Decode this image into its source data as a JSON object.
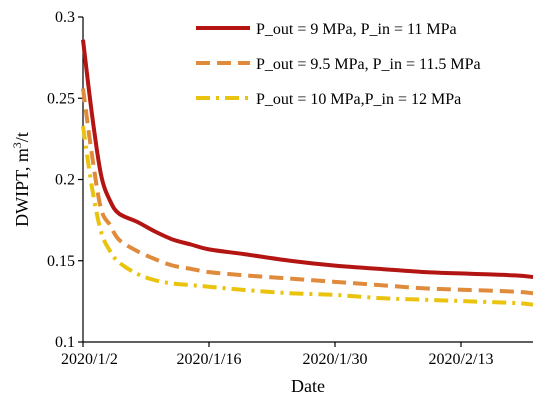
{
  "chart_data": {
    "type": "line",
    "title": "",
    "xlabel": "Date",
    "ylabel": "DWIPT, m³/t",
    "ylabel_main": "DWIPT, m",
    "ylabel_sup": "3",
    "ylabel_tail": "/t",
    "x_type": "date",
    "xlim": [
      "2020-01-02",
      "2020-02-21"
    ],
    "ylim": [
      0.1,
      0.3
    ],
    "x_ticks": [
      {
        "date": "2020-01-02",
        "label": "2020/1/2"
      },
      {
        "date": "2020-01-16",
        "label": "2020/1/16"
      },
      {
        "date": "2020-01-30",
        "label": "2020/1/30"
      },
      {
        "date": "2020-02-13",
        "label": "2020/2/13"
      }
    ],
    "y_ticks": [
      {
        "value": 0.1,
        "label": "0.1"
      },
      {
        "value": 0.15,
        "label": "0.15"
      },
      {
        "value": 0.2,
        "label": "0.2"
      },
      {
        "value": 0.25,
        "label": "0.25"
      },
      {
        "value": 0.3,
        "label": "0.3"
      }
    ],
    "grid": false,
    "legend_position": "top-right",
    "series": [
      {
        "name": "P_out = 9 MPa, P_in = 11 MPa",
        "color": "#b31512",
        "style": "solid",
        "points": [
          [
            "2020-01-02",
            0.286
          ],
          [
            "2020-01-03",
            0.24
          ],
          [
            "2020-01-04",
            0.203
          ],
          [
            "2020-01-05",
            0.187
          ],
          [
            "2020-01-06",
            0.179
          ],
          [
            "2020-01-08",
            0.174
          ],
          [
            "2020-01-10",
            0.168
          ],
          [
            "2020-01-12",
            0.163
          ],
          [
            "2020-01-14",
            0.16
          ],
          [
            "2020-01-16",
            0.157
          ],
          [
            "2020-01-20",
            0.154
          ],
          [
            "2020-01-25",
            0.15
          ],
          [
            "2020-01-30",
            0.147
          ],
          [
            "2020-02-04",
            0.145
          ],
          [
            "2020-02-09",
            0.143
          ],
          [
            "2020-02-14",
            0.142
          ],
          [
            "2020-02-19",
            0.141
          ],
          [
            "2020-02-21",
            0.14
          ]
        ]
      },
      {
        "name": "P_out = 9.5 MPa, P_in = 11.5 MPa",
        "color": "#e08a3c",
        "style": "dashed",
        "points": [
          [
            "2020-01-02",
            0.256
          ],
          [
            "2020-01-03",
            0.215
          ],
          [
            "2020-01-04",
            0.182
          ],
          [
            "2020-01-05",
            0.172
          ],
          [
            "2020-01-06",
            0.163
          ],
          [
            "2020-01-08",
            0.156
          ],
          [
            "2020-01-10",
            0.151
          ],
          [
            "2020-01-12",
            0.147
          ],
          [
            "2020-01-14",
            0.145
          ],
          [
            "2020-01-16",
            0.143
          ],
          [
            "2020-01-20",
            0.141
          ],
          [
            "2020-01-25",
            0.139
          ],
          [
            "2020-01-30",
            0.137
          ],
          [
            "2020-02-04",
            0.135
          ],
          [
            "2020-02-09",
            0.133
          ],
          [
            "2020-02-14",
            0.132
          ],
          [
            "2020-02-19",
            0.131
          ],
          [
            "2020-02-21",
            0.13
          ]
        ]
      },
      {
        "name": "P_out = 10 MPa,P_in = 12 MPa",
        "color": "#e9c30e",
        "style": "dashdot",
        "points": [
          [
            "2020-01-02",
            0.233
          ],
          [
            "2020-01-03",
            0.195
          ],
          [
            "2020-01-04",
            0.168
          ],
          [
            "2020-01-05",
            0.156
          ],
          [
            "2020-01-06",
            0.149
          ],
          [
            "2020-01-08",
            0.142
          ],
          [
            "2020-01-10",
            0.138
          ],
          [
            "2020-01-12",
            0.136
          ],
          [
            "2020-01-14",
            0.135
          ],
          [
            "2020-01-16",
            0.134
          ],
          [
            "2020-01-20",
            0.132
          ],
          [
            "2020-01-25",
            0.13
          ],
          [
            "2020-01-30",
            0.129
          ],
          [
            "2020-02-04",
            0.127
          ],
          [
            "2020-02-09",
            0.126
          ],
          [
            "2020-02-14",
            0.125
          ],
          [
            "2020-02-19",
            0.124
          ],
          [
            "2020-02-21",
            0.123
          ]
        ]
      }
    ]
  }
}
